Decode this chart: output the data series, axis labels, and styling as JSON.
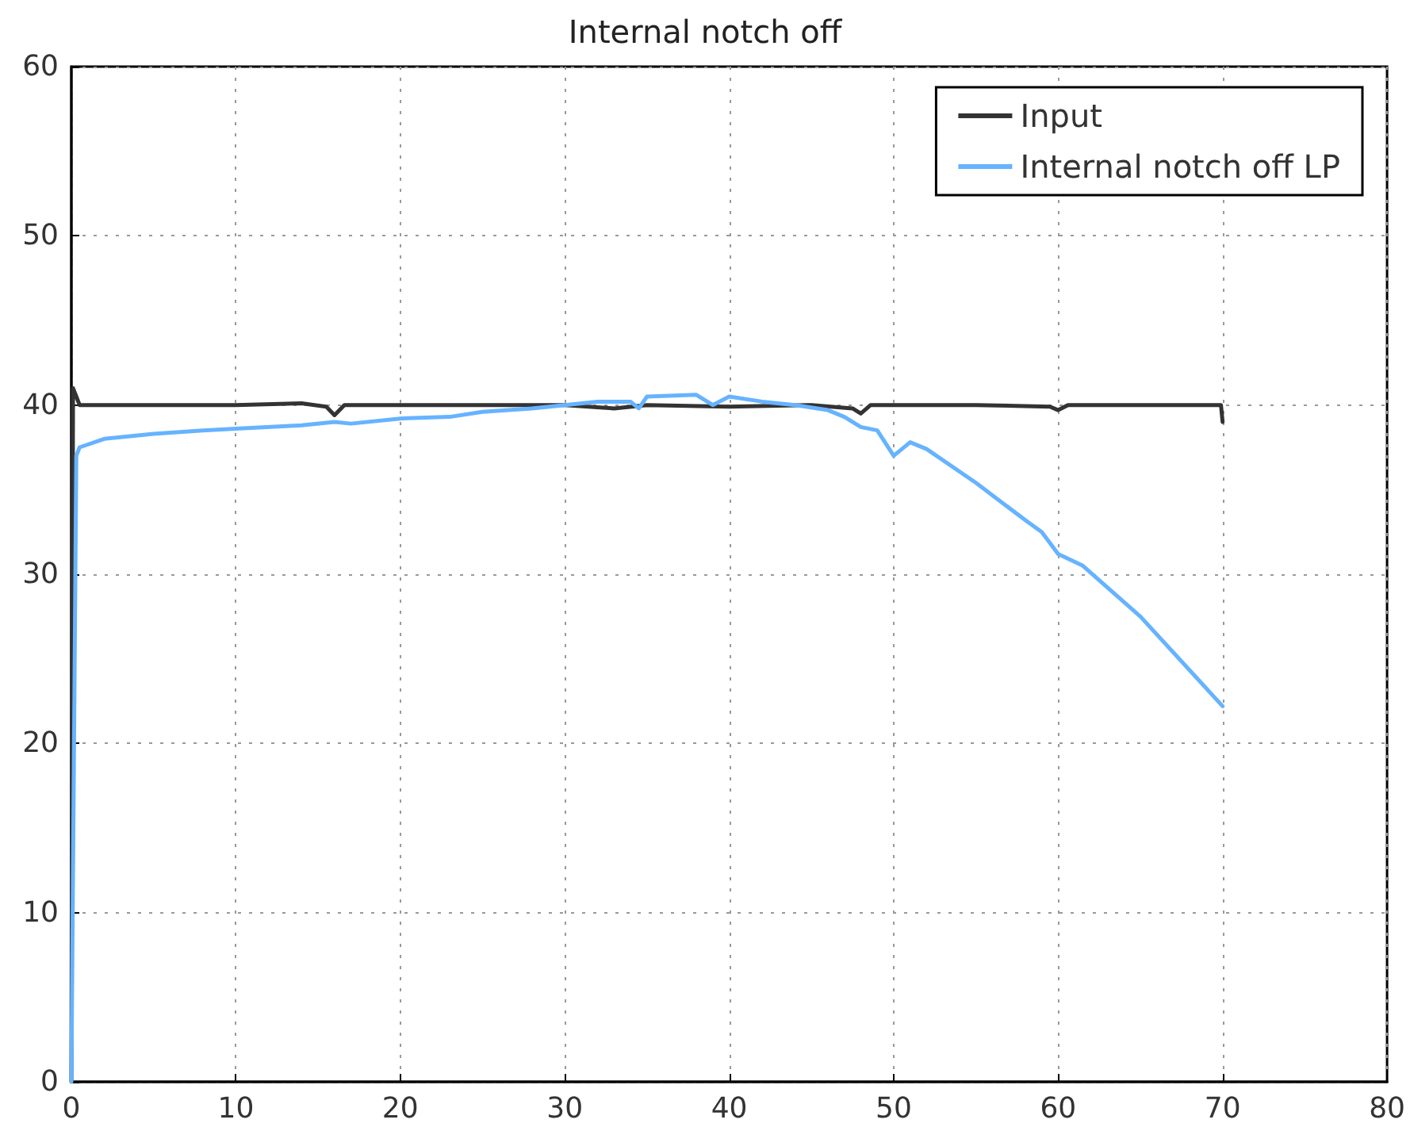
{
  "chart_data": {
    "type": "line",
    "title": "Internal notch off",
    "series": [
      {
        "name": "Input",
        "color": "#333333",
        "x": [
          0,
          0.1,
          0.3,
          0.5,
          5,
          10,
          14,
          15.5,
          16,
          16.6,
          20,
          25,
          30,
          33,
          35,
          40,
          45,
          47.5,
          48,
          48.6,
          50,
          55,
          59.5,
          60,
          60.6,
          65,
          69.9,
          70
        ],
        "values": [
          0,
          41,
          40.5,
          40,
          40,
          40,
          40.1,
          39.9,
          39.4,
          40,
          40,
          40,
          40,
          39.8,
          40,
          39.9,
          40,
          39.8,
          39.5,
          40,
          40,
          40,
          39.9,
          39.7,
          40,
          40,
          40,
          39
        ]
      },
      {
        "name": "Internal notch off LP",
        "color": "#66b3ff",
        "x": [
          0,
          0.3,
          0.5,
          2,
          5,
          8,
          10,
          14,
          16,
          17,
          20,
          23,
          25,
          28,
          30,
          32,
          34,
          34.5,
          35,
          38,
          39,
          40,
          42,
          44,
          46,
          47,
          48,
          49,
          50,
          51,
          52,
          55,
          58,
          59,
          60,
          61.5,
          65,
          70
        ],
        "values": [
          0,
          37,
          37.5,
          38,
          38.3,
          38.5,
          38.6,
          38.8,
          39,
          38.9,
          39.2,
          39.3,
          39.6,
          39.8,
          40,
          40.2,
          40.2,
          39.8,
          40.5,
          40.6,
          40,
          40.5,
          40.2,
          40,
          39.7,
          39.3,
          38.7,
          38.5,
          37,
          37.8,
          37.4,
          35.4,
          33.2,
          32.5,
          31.2,
          30.5,
          27.5,
          22.2
        ]
      }
    ],
    "xlim": [
      0,
      80
    ],
    "xticks": [
      0,
      10,
      20,
      30,
      40,
      50,
      60,
      70,
      80
    ],
    "ylim": [
      0,
      60
    ],
    "yticks": [
      0,
      10,
      20,
      30,
      40,
      50,
      60
    ],
    "grid": true,
    "legend": "top right",
    "marker": "none",
    "line_style": "solid"
  }
}
